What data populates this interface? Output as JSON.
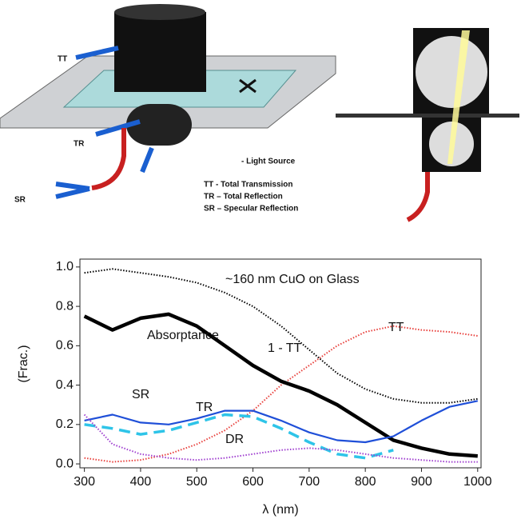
{
  "diagram": {
    "labels": [
      "TT",
      "TR",
      "SR",
      "- Light Source",
      "TT  - Total Transmission",
      "TR – Total Reflection",
      "SR – Specular Reflection"
    ]
  },
  "chart_data": {
    "type": "line",
    "annotation": "~160 nm CuO on Glass",
    "xlabel": "λ  (nm)",
    "ylabel": "(Frac.)",
    "x": [
      300,
      350,
      400,
      450,
      500,
      550,
      600,
      650,
      700,
      750,
      800,
      850,
      900,
      950,
      1000
    ],
    "series": [
      {
        "name": "1 - TT",
        "color": "#000000",
        "style": "dotted",
        "values": [
          0.97,
          0.99,
          0.97,
          0.95,
          0.92,
          0.87,
          0.8,
          0.7,
          0.58,
          0.46,
          0.38,
          0.33,
          0.31,
          0.31,
          0.33
        ]
      },
      {
        "name": "TT",
        "color": "#e8403c",
        "style": "dotted",
        "values": [
          0.03,
          0.01,
          0.02,
          0.05,
          0.1,
          0.17,
          0.27,
          0.4,
          0.5,
          0.6,
          0.67,
          0.7,
          0.68,
          0.67,
          0.65
        ]
      },
      {
        "name": "Absorptance",
        "color": "#000000",
        "style": "thick",
        "values": [
          0.75,
          0.68,
          0.74,
          0.76,
          0.7,
          0.6,
          0.5,
          0.42,
          0.37,
          0.3,
          0.21,
          0.12,
          0.08,
          0.05,
          0.04
        ]
      },
      {
        "name": "TR",
        "color": "#1f4fd8",
        "style": "solid",
        "values": [
          0.22,
          0.25,
          0.21,
          0.2,
          0.23,
          0.27,
          0.27,
          0.22,
          0.16,
          0.12,
          0.11,
          0.14,
          0.22,
          0.29,
          0.32
        ]
      },
      {
        "name": "SR",
        "color": "#2ec4e8",
        "style": "dashed",
        "values": [
          0.2,
          0.18,
          0.15,
          0.17,
          0.21,
          0.25,
          0.24,
          0.18,
          0.11,
          0.05,
          0.03,
          0.07,
          null,
          null,
          null
        ]
      },
      {
        "name": "DR",
        "color": "#a040d0",
        "style": "dotted",
        "values": [
          0.25,
          0.1,
          0.05,
          0.03,
          0.02,
          0.03,
          0.05,
          0.07,
          0.08,
          0.07,
          0.05,
          0.03,
          0.02,
          0.01,
          0.01
        ]
      }
    ],
    "xlim": [
      292,
      1006
    ],
    "ylim": [
      -0.02,
      1.04
    ],
    "xticks": [
      300,
      400,
      500,
      600,
      700,
      800,
      900,
      1000
    ],
    "yticks": [
      {
        "value": 0,
        "label": "0.0"
      },
      {
        "value": 0.2,
        "label": "0.2"
      },
      {
        "value": 0.4,
        "label": "0.4"
      },
      {
        "value": 0.6,
        "label": "0.6"
      },
      {
        "value": 0.8,
        "label": "0.8"
      },
      {
        "value": 1,
        "label": "1.0"
      }
    ]
  }
}
